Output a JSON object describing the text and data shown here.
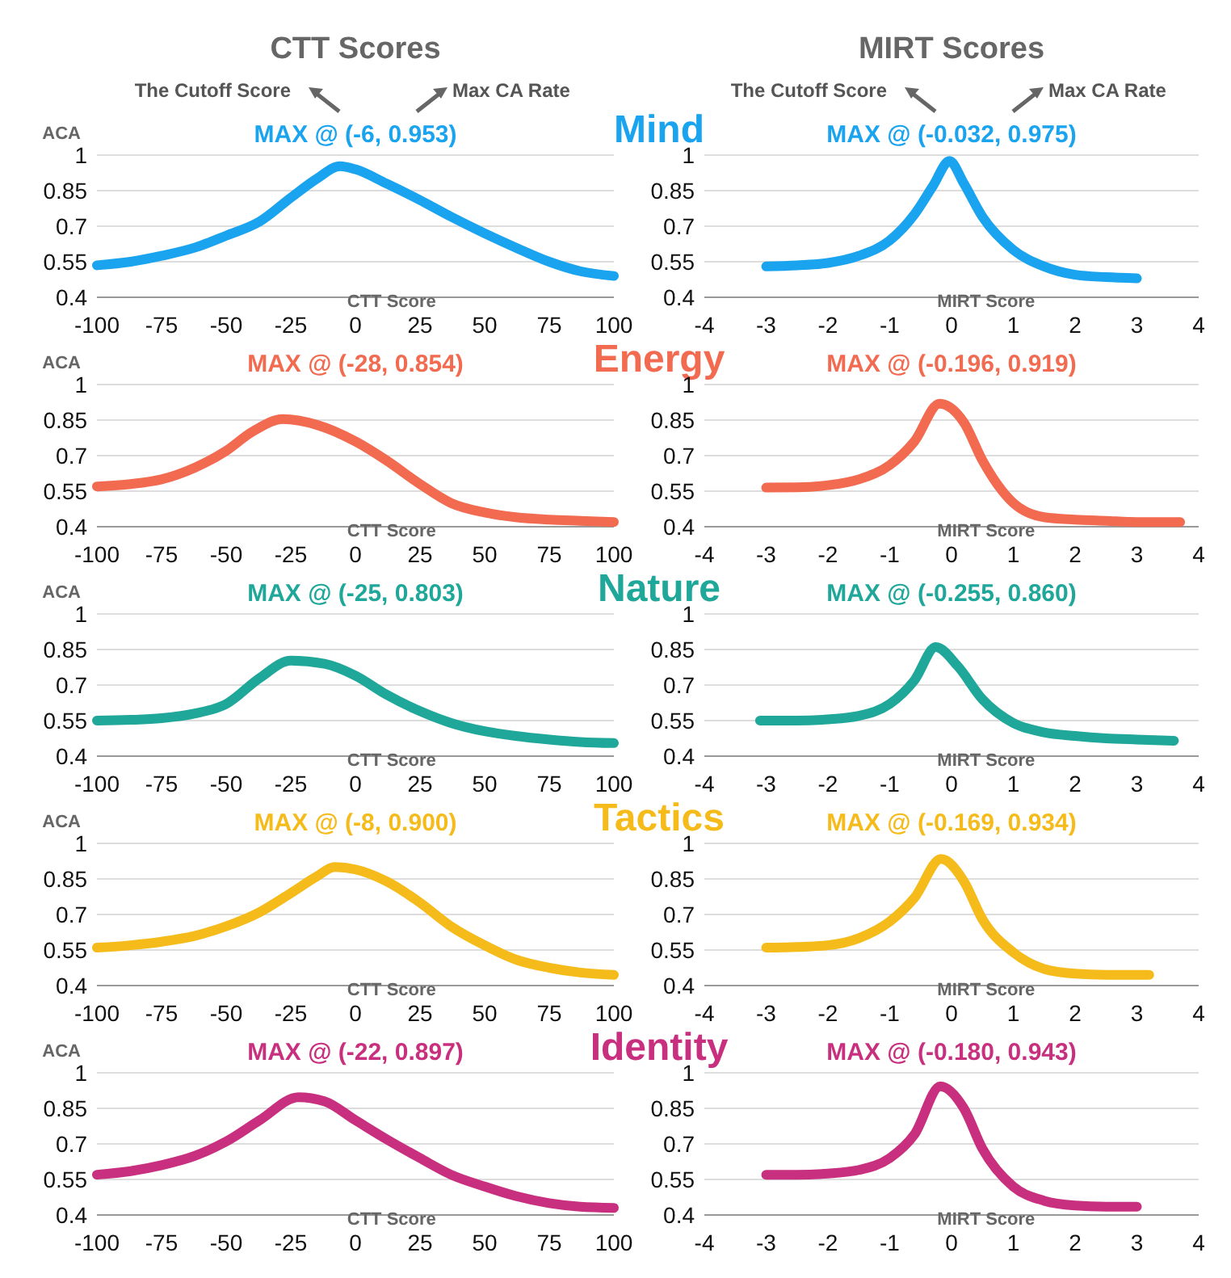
{
  "chart_data": [
    {
      "type": "line",
      "title": "MAX @ (-6, 0.953)",
      "subtitle": "Mind",
      "ylabel": "ACA",
      "xlabel": "CTT Score",
      "annotations": [
        "CTT Scores",
        "The Cutoff Score",
        "Max CA Rate"
      ],
      "xlim": [
        -100,
        100
      ],
      "xticks": [
        -100,
        -75,
        -50,
        -25,
        0,
        25,
        50,
        75,
        100
      ],
      "ylim": [
        0.4,
        1
      ],
      "yticks": [
        0.4,
        0.55,
        0.7,
        0.85,
        1
      ],
      "grid": "y",
      "series": [
        {
          "color": "#1aa3ee",
          "x": [
            -100,
            -87,
            -75,
            -62,
            -50,
            -37,
            -25,
            -15,
            -6,
            0,
            12,
            25,
            37,
            50,
            62,
            75,
            87,
            100
          ],
          "values": [
            0.535,
            0.55,
            0.575,
            0.61,
            0.66,
            0.72,
            0.82,
            0.9,
            0.953,
            0.94,
            0.88,
            0.81,
            0.74,
            0.67,
            0.61,
            0.55,
            0.51,
            0.49
          ]
        }
      ]
    },
    {
      "type": "line",
      "title": "MAX @ (-0.032, 0.975)",
      "xlabel": "MIRT Score",
      "annotations": [
        "MIRT Scores",
        "The Cutoff Score",
        "Max CA Rate"
      ],
      "xlim": [
        -4,
        4
      ],
      "xticks": [
        -4,
        -3,
        -2,
        -1,
        0,
        1,
        2,
        3,
        4
      ],
      "ylim": [
        0.4,
        1
      ],
      "yticks": [
        0.4,
        0.55,
        0.7,
        0.85,
        1
      ],
      "grid": "y",
      "series": [
        {
          "color": "#1aa3ee",
          "x": [
            -3,
            -2.5,
            -2,
            -1.5,
            -1,
            -0.6,
            -0.3,
            -0.032,
            0.2,
            0.5,
            1,
            1.5,
            2,
            2.5,
            3
          ],
          "values": [
            0.53,
            0.535,
            0.545,
            0.575,
            0.64,
            0.75,
            0.87,
            0.975,
            0.88,
            0.74,
            0.6,
            0.53,
            0.495,
            0.485,
            0.48
          ]
        }
      ]
    },
    {
      "type": "line",
      "title": "MAX @ (-28, 0.854)",
      "subtitle": "Energy",
      "ylabel": "ACA",
      "xlabel": "CTT Score",
      "xlim": [
        -100,
        100
      ],
      "xticks": [
        -100,
        -75,
        -50,
        -25,
        0,
        25,
        50,
        75,
        100
      ],
      "ylim": [
        0.4,
        1
      ],
      "yticks": [
        0.4,
        0.55,
        0.7,
        0.85,
        1
      ],
      "grid": "y",
      "series": [
        {
          "color": "#f26a50",
          "x": [
            -100,
            -87,
            -75,
            -62,
            -50,
            -40,
            -28,
            -15,
            0,
            12,
            25,
            37,
            50,
            62,
            75,
            87,
            100
          ],
          "values": [
            0.57,
            0.58,
            0.6,
            0.65,
            0.72,
            0.8,
            0.854,
            0.83,
            0.76,
            0.68,
            0.58,
            0.5,
            0.46,
            0.44,
            0.43,
            0.425,
            0.42
          ]
        }
      ]
    },
    {
      "type": "line",
      "title": "MAX @ (-0.196, 0.919)",
      "xlabel": "MIRT Score",
      "xlim": [
        -4,
        4
      ],
      "xticks": [
        -4,
        -3,
        -2,
        -1,
        0,
        1,
        2,
        3,
        4
      ],
      "ylim": [
        0.4,
        1
      ],
      "yticks": [
        0.4,
        0.55,
        0.7,
        0.85,
        1
      ],
      "grid": "y",
      "series": [
        {
          "color": "#f26a50",
          "x": [
            -3,
            -2.5,
            -2,
            -1.5,
            -1,
            -0.6,
            -0.196,
            0.2,
            0.5,
            1,
            1.5,
            2,
            2.5,
            3,
            3.7
          ],
          "values": [
            0.565,
            0.566,
            0.575,
            0.6,
            0.66,
            0.76,
            0.919,
            0.84,
            0.68,
            0.5,
            0.44,
            0.43,
            0.425,
            0.42,
            0.42
          ]
        }
      ]
    },
    {
      "type": "line",
      "title": "MAX @ (-25, 0.803)",
      "subtitle": "Nature",
      "ylabel": "ACA",
      "xlabel": "CTT Score",
      "xlim": [
        -100,
        100
      ],
      "xticks": [
        -100,
        -75,
        -50,
        -25,
        0,
        25,
        50,
        75,
        100
      ],
      "ylim": [
        0.4,
        1
      ],
      "yticks": [
        0.4,
        0.55,
        0.7,
        0.85,
        1
      ],
      "grid": "y",
      "series": [
        {
          "color": "#1fa79a",
          "x": [
            -100,
            -87,
            -75,
            -62,
            -50,
            -37,
            -25,
            -12,
            0,
            12,
            25,
            37,
            50,
            62,
            75,
            87,
            100
          ],
          "values": [
            0.55,
            0.553,
            0.56,
            0.58,
            0.62,
            0.73,
            0.803,
            0.79,
            0.74,
            0.66,
            0.59,
            0.54,
            0.505,
            0.485,
            0.47,
            0.46,
            0.455
          ]
        }
      ]
    },
    {
      "type": "line",
      "title": "MAX @ (-0.255, 0.860)",
      "xlabel": "MIRT Score",
      "xlim": [
        -4,
        4
      ],
      "xticks": [
        -4,
        -3,
        -2,
        -1,
        0,
        1,
        2,
        3,
        4
      ],
      "ylim": [
        0.4,
        1
      ],
      "yticks": [
        0.4,
        0.55,
        0.7,
        0.85,
        1
      ],
      "grid": "y",
      "series": [
        {
          "color": "#1fa79a",
          "x": [
            -3.1,
            -2.5,
            -2,
            -1.5,
            -1,
            -0.6,
            -0.255,
            0.1,
            0.5,
            1,
            1.5,
            2,
            2.5,
            3,
            3.6
          ],
          "values": [
            0.55,
            0.55,
            0.555,
            0.57,
            0.62,
            0.72,
            0.86,
            0.78,
            0.64,
            0.54,
            0.5,
            0.485,
            0.475,
            0.47,
            0.465
          ]
        }
      ]
    },
    {
      "type": "line",
      "title": "MAX @ (-8, 0.900)",
      "subtitle": "Tactics",
      "ylabel": "ACA",
      "xlabel": "CTT Score",
      "xlim": [
        -100,
        100
      ],
      "xticks": [
        -100,
        -75,
        -50,
        -25,
        0,
        25,
        50,
        75,
        100
      ],
      "ylim": [
        0.4,
        1
      ],
      "yticks": [
        0.4,
        0.55,
        0.7,
        0.85,
        1
      ],
      "grid": "y",
      "series": [
        {
          "color": "#f5bb1b",
          "x": [
            -100,
            -87,
            -75,
            -62,
            -50,
            -37,
            -25,
            -15,
            -8,
            0,
            12,
            25,
            37,
            50,
            62,
            75,
            87,
            100
          ],
          "values": [
            0.56,
            0.57,
            0.585,
            0.61,
            0.65,
            0.71,
            0.79,
            0.86,
            0.9,
            0.89,
            0.84,
            0.75,
            0.65,
            0.57,
            0.51,
            0.475,
            0.455,
            0.445
          ]
        }
      ]
    },
    {
      "type": "line",
      "title": "MAX @ (-0.169, 0.934)",
      "xlabel": "MIRT Score",
      "xlim": [
        -4,
        4
      ],
      "xticks": [
        -4,
        -3,
        -2,
        -1,
        0,
        1,
        2,
        3,
        4
      ],
      "ylim": [
        0.4,
        1
      ],
      "yticks": [
        0.4,
        0.55,
        0.7,
        0.85,
        1
      ],
      "grid": "y",
      "series": [
        {
          "color": "#f5bb1b",
          "x": [
            -3,
            -2.5,
            -2,
            -1.5,
            -1,
            -0.6,
            -0.169,
            0.2,
            0.5,
            1,
            1.5,
            2,
            2.5,
            3.2
          ],
          "values": [
            0.56,
            0.563,
            0.57,
            0.6,
            0.67,
            0.77,
            0.934,
            0.84,
            0.68,
            0.54,
            0.47,
            0.45,
            0.445,
            0.445
          ]
        }
      ]
    },
    {
      "type": "line",
      "title": "MAX @ (-22, 0.897)",
      "subtitle": "Identity",
      "ylabel": "ACA",
      "xlabel": "CTT Score",
      "xlim": [
        -100,
        100
      ],
      "xticks": [
        -100,
        -75,
        -50,
        -25,
        0,
        25,
        50,
        75,
        100
      ],
      "ylim": [
        0.4,
        1
      ],
      "yticks": [
        0.4,
        0.55,
        0.7,
        0.85,
        1
      ],
      "grid": "y",
      "series": [
        {
          "color": "#c8307f",
          "x": [
            -100,
            -87,
            -75,
            -62,
            -50,
            -37,
            -22,
            -12,
            0,
            12,
            25,
            37,
            50,
            62,
            75,
            87,
            100
          ],
          "values": [
            0.57,
            0.585,
            0.61,
            0.65,
            0.71,
            0.8,
            0.897,
            0.88,
            0.8,
            0.72,
            0.64,
            0.57,
            0.52,
            0.48,
            0.45,
            0.435,
            0.43
          ]
        }
      ]
    },
    {
      "type": "line",
      "title": "MAX @ (-0.180, 0.943)",
      "xlabel": "MIRT Score",
      "xlim": [
        -4,
        4
      ],
      "xticks": [
        -4,
        -3,
        -2,
        -1,
        0,
        1,
        2,
        3,
        4
      ],
      "ylim": [
        0.4,
        1
      ],
      "yticks": [
        0.4,
        0.55,
        0.7,
        0.85,
        1
      ],
      "grid": "y",
      "series": [
        {
          "color": "#c8307f",
          "x": [
            -3,
            -2.5,
            -2,
            -1.5,
            -1,
            -0.6,
            -0.18,
            0.2,
            0.5,
            1,
            1.5,
            2,
            2.5,
            3
          ],
          "values": [
            0.57,
            0.57,
            0.575,
            0.59,
            0.64,
            0.74,
            0.943,
            0.85,
            0.68,
            0.52,
            0.46,
            0.44,
            0.435,
            0.435
          ]
        }
      ]
    }
  ]
}
